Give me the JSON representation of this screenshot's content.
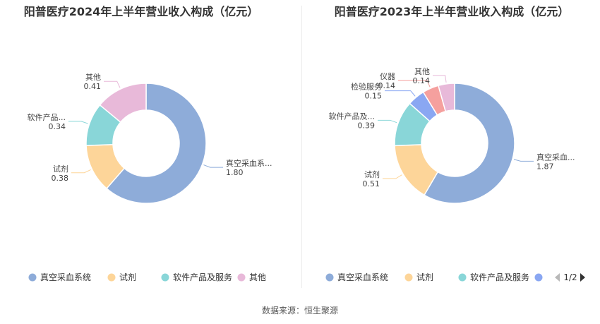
{
  "charts": [
    {
      "title": "阳普医疗2024年上半年营业收入构成（亿元）",
      "chart_data": {
        "type": "pie",
        "categories": [
          "真空采血系统",
          "试剂",
          "软件产品及服务",
          "其他"
        ],
        "values": [
          1.8,
          0.38,
          0.34,
          0.41
        ],
        "label_texts": [
          "真空采血系...",
          "试剂",
          "软件产品...",
          "其他"
        ],
        "value_texts": [
          "1.80",
          "0.38",
          "0.34",
          "0.41"
        ],
        "colors": [
          "#8eacd9",
          "#fdd599",
          "#89d6d8",
          "#e8b9d9"
        ],
        "legend": {
          "position": "bottom",
          "items": [
            "真空采血系统",
            "试剂",
            "软件产品及服务",
            "其他"
          ]
        }
      }
    },
    {
      "title": "阳普医疗2023年上半年营业收入构成（亿元）",
      "chart_data": {
        "type": "pie",
        "categories": [
          "真空采血系统",
          "试剂",
          "软件产品及服务",
          "检验服务",
          "仪器",
          "其他"
        ],
        "values": [
          1.87,
          0.51,
          0.39,
          0.15,
          0.14,
          0.14
        ],
        "label_texts": [
          "真空采血...",
          "试剂",
          "软件产品及...",
          "检验服务",
          "仪器",
          "其他"
        ],
        "value_texts": [
          "1.87",
          "0.51",
          "0.39",
          "0.15",
          "0.14",
          "0.14"
        ],
        "colors": [
          "#8eacd9",
          "#fdd599",
          "#89d6d8",
          "#8aa7f2",
          "#f5a09e",
          "#e8b9d9"
        ],
        "legend": {
          "position": "bottom",
          "items": [
            "真空采血系统",
            "试剂",
            "软件产品及服务"
          ],
          "pager": "1/2"
        }
      }
    }
  ],
  "source": "数据来源：恒生聚源"
}
